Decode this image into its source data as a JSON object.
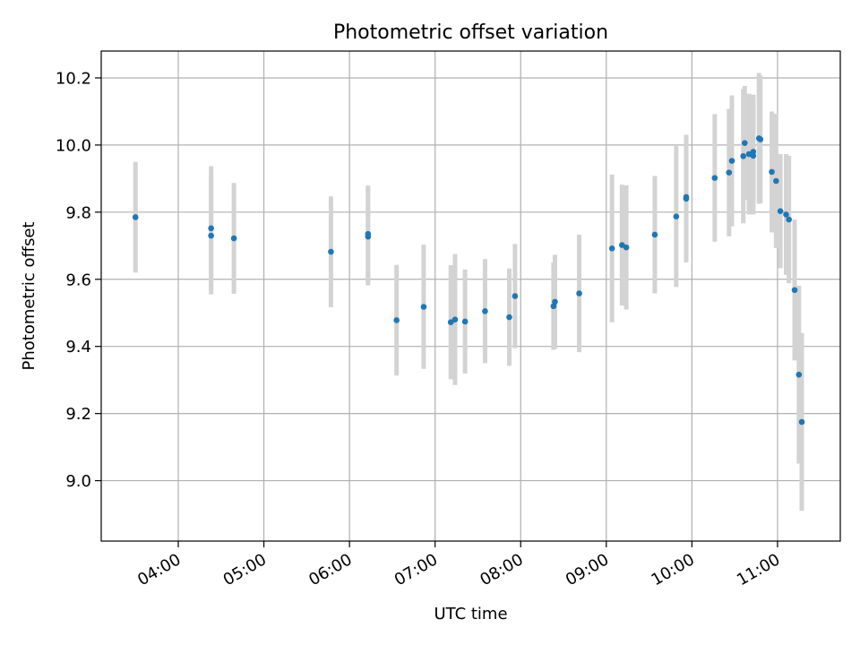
{
  "chart_data": {
    "type": "scatter",
    "title": "Photometric offset variation",
    "xlabel": "UTC time",
    "ylabel": "Photometric offset",
    "x_is_time": true,
    "xlim": [
      "03:06",
      "11:44"
    ],
    "ylim": [
      8.82,
      10.28
    ],
    "xticks": [
      "04:00",
      "05:00",
      "06:00",
      "07:00",
      "08:00",
      "09:00",
      "10:00",
      "11:00"
    ],
    "yticks": [
      9.0,
      9.2,
      9.4,
      9.6,
      9.8,
      10.0,
      10.2
    ],
    "ytick_labels": [
      "9.0",
      "9.2",
      "9.4",
      "9.6",
      "9.8",
      "10.0",
      "10.2"
    ],
    "grid": true,
    "colors": {
      "points": "#1f77b4",
      "errorbars": "#d3d3d3",
      "grid": "#b0b0b0"
    },
    "series": [
      {
        "x": [
          "03:30",
          "04:23",
          "04:23",
          "04:39",
          "05:47",
          "06:13",
          "06:13",
          "06:33",
          "06:52",
          "07:11",
          "07:14",
          "07:21",
          "07:35",
          "07:52",
          "07:56",
          "08:23",
          "08:24",
          "08:41",
          "09:04",
          "09:11",
          "09:14",
          "09:34",
          "09:49",
          "09:56",
          "09:56",
          "10:16",
          "10:26",
          "10:28",
          "10:36",
          "10:37",
          "10:40",
          "10:43",
          "10:43",
          "10:47",
          "10:48",
          "10:56",
          "10:59",
          "11:02",
          "11:06",
          "11:08",
          "11:12",
          "11:15",
          "11:17"
        ],
        "y": [
          9.785,
          9.73,
          9.752,
          9.722,
          9.682,
          9.727,
          9.735,
          9.478,
          9.518,
          9.472,
          9.48,
          9.474,
          9.505,
          9.487,
          9.55,
          9.52,
          9.533,
          9.558,
          9.692,
          9.702,
          9.695,
          9.733,
          9.787,
          9.84,
          9.845,
          9.902,
          9.918,
          9.953,
          9.967,
          10.006,
          9.973,
          9.98,
          9.968,
          10.02,
          10.017,
          9.92,
          9.893,
          9.803,
          9.793,
          9.778,
          9.568,
          9.316,
          9.175
        ],
        "yerr": [
          0.165,
          0.175,
          0.185,
          0.165,
          0.165,
          0.145,
          0.145,
          0.165,
          0.185,
          0.17,
          0.195,
          0.155,
          0.155,
          0.145,
          0.155,
          0.13,
          0.14,
          0.175,
          0.22,
          0.18,
          0.185,
          0.175,
          0.21,
          0.19,
          0.185,
          0.19,
          0.19,
          0.195,
          0.2,
          0.17,
          0.18,
          0.17,
          0.175,
          0.195,
          0.19,
          0.18,
          0.2,
          0.17,
          0.18,
          0.19,
          0.21,
          0.265,
          0.265
        ]
      }
    ]
  }
}
